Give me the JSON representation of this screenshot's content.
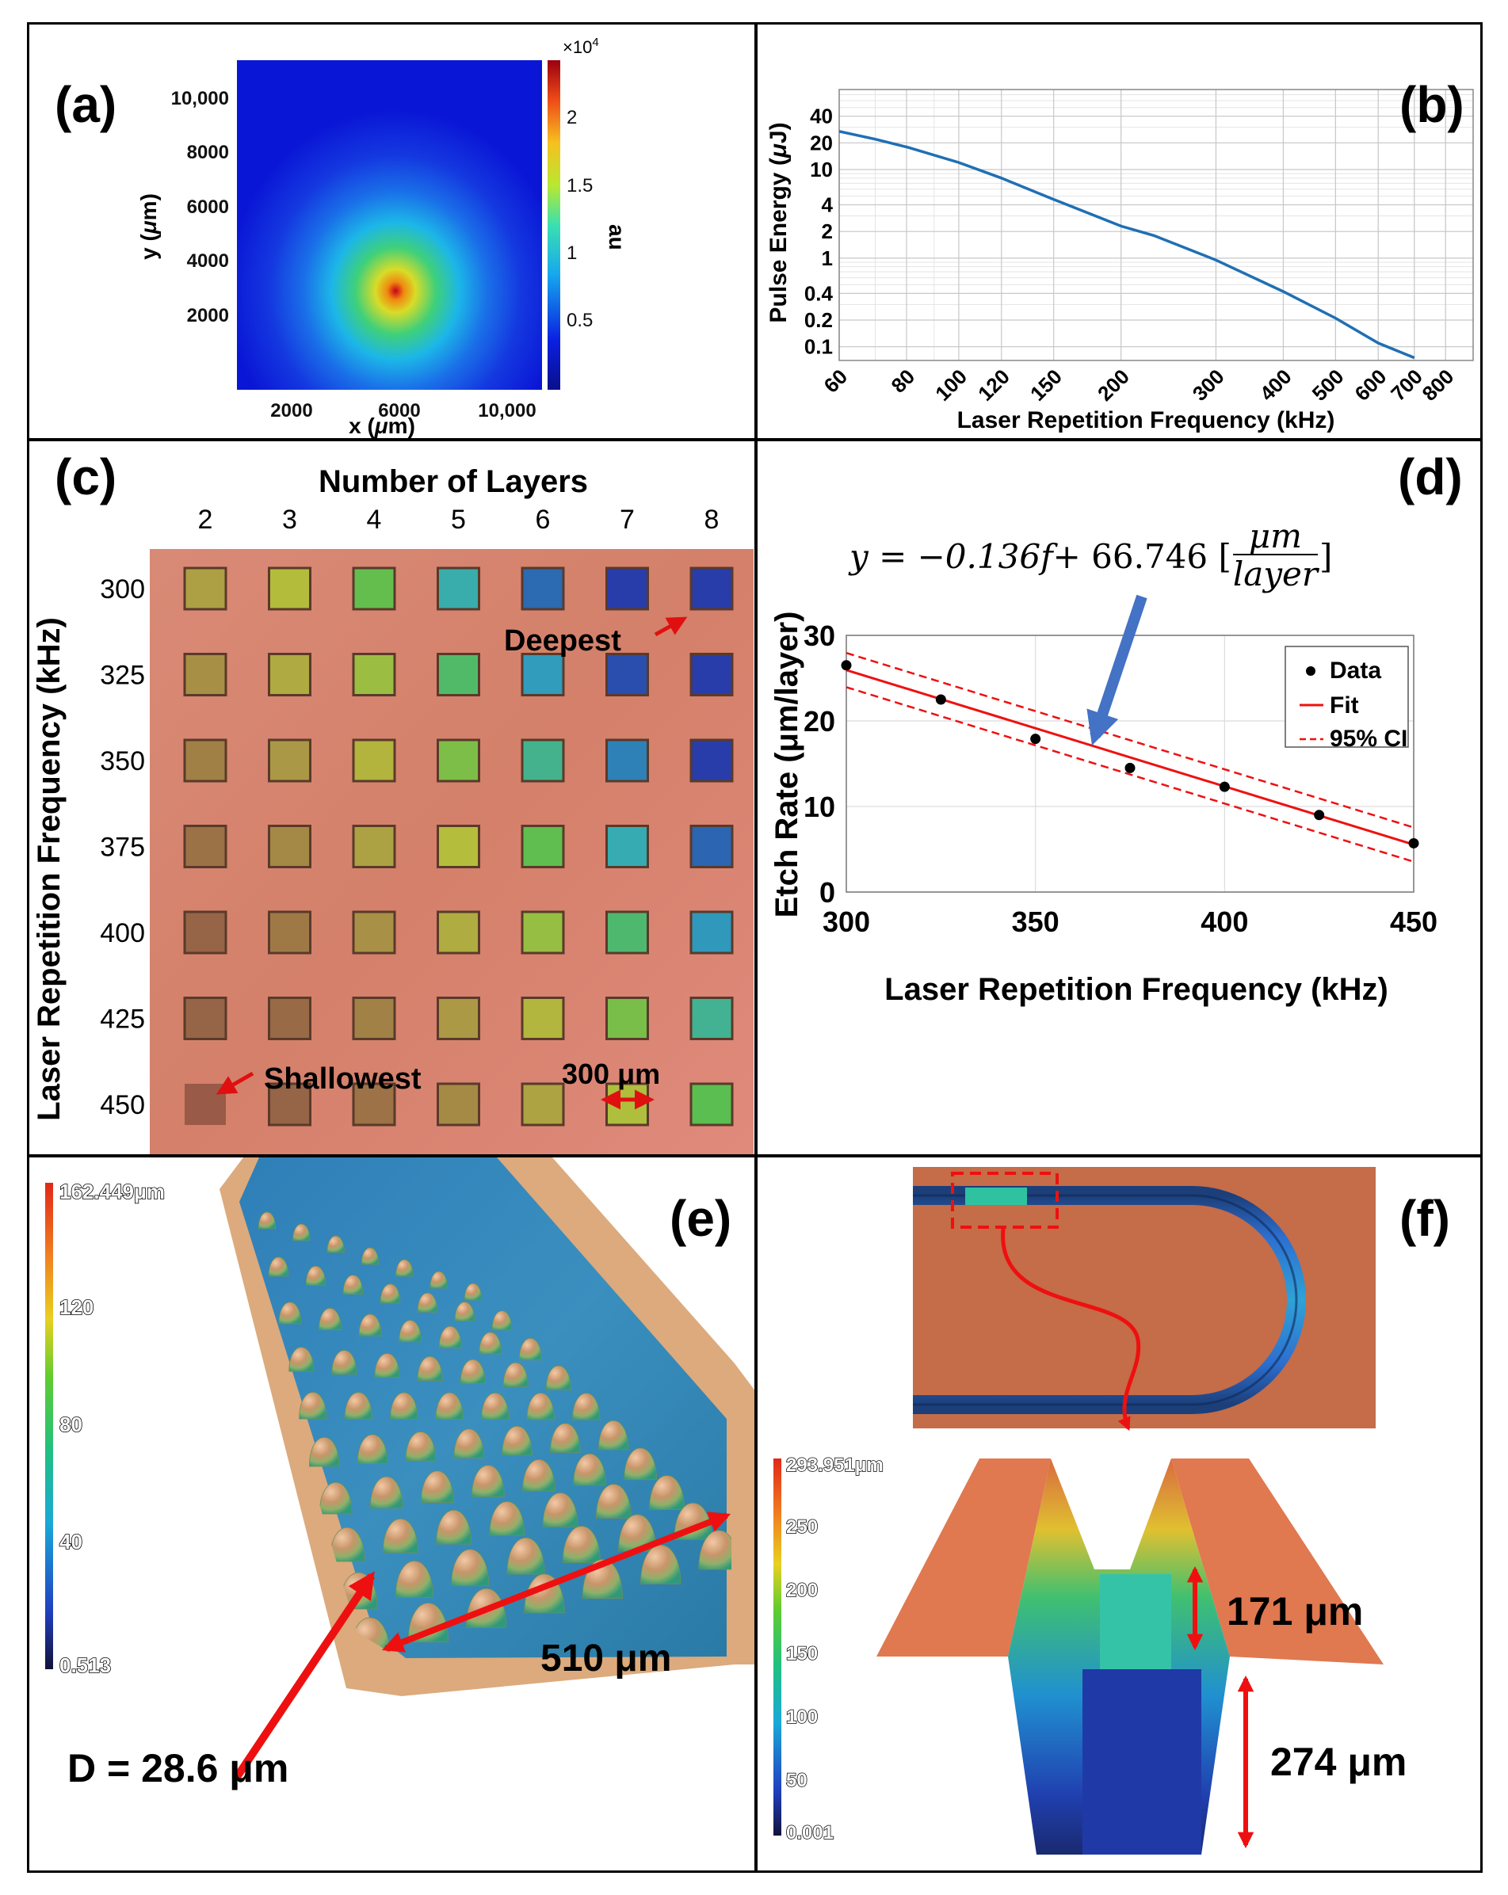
{
  "panels": {
    "a": {
      "label": "(a)",
      "xlabel_pre": "x (",
      "xlabel_mu": "μ",
      "xlabel_post": "m)",
      "ylabel_pre": "y (",
      "ylabel_mu": "μ",
      "ylabel_post": "m)",
      "xticks": [
        "2000",
        "6000",
        "10,000"
      ],
      "yticks": [
        "10,000",
        "8000",
        "6000",
        "4000",
        "2000"
      ],
      "colorbar_label": "au",
      "colorbar_exp_base": "×10",
      "colorbar_exp_power": "4",
      "colorbar_ticks": [
        "2",
        "1.5",
        "1",
        "0.5"
      ]
    },
    "b": {
      "label": "(b)",
      "xlabel": "Laser Repetition Frequency (kHz)",
      "ylabel_pre": "Pulse Energy (",
      "ylabel_mu": "μ",
      "ylabel_post": "J)",
      "colors": {
        "line": "#1f6fb4"
      }
    },
    "c": {
      "label": "(c)",
      "top_title": "Number of Layers",
      "columns": [
        "2",
        "3",
        "4",
        "5",
        "6",
        "7",
        "8"
      ],
      "rows": [
        "300",
        "325",
        "350",
        "375",
        "400",
        "425",
        "450"
      ],
      "ylabel": "Laser Repetition Frequency (kHz)",
      "deepest": "Deepest",
      "shallowest": "Shallowest",
      "scale_text": "300 μm",
      "colors": {
        "substrate": "#d8826e"
      }
    },
    "d": {
      "label": "(d)",
      "equation": {
        "lhs": "y = −0.136",
        "f": "f",
        "rest": " + 66.746 [",
        "num": "μm",
        "den": "layer",
        "close": "]"
      },
      "xlabel": "Laser Repetition Frequency (kHz)",
      "ylabel": "Etch Rate (μm/layer)",
      "legend": [
        "Data",
        "Fit",
        "95% CI"
      ],
      "colors": {
        "fit": "#ee1111",
        "arrow": "#4472c4"
      }
    },
    "e": {
      "label": "(e)",
      "colorbar_ticks": [
        "162.449μm",
        "120",
        "80",
        "40",
        "0.513"
      ],
      "dimension": "510 μm",
      "diameter": "D = 28.6 μm"
    },
    "f": {
      "label": "(f)",
      "colorbar_ticks": [
        "293.951μm",
        "250",
        "200",
        "150",
        "100",
        "50",
        "0.001"
      ],
      "depth_upper": "171 μm",
      "depth_lower": "274 μm"
    }
  },
  "chart_data": [
    {
      "id": "b",
      "type": "line",
      "title": "",
      "xlabel": "Laser Repetition Frequency (kHz)",
      "ylabel": "Pulse Energy (μJ)",
      "xscale": "log",
      "yscale": "log",
      "xlim": [
        60,
        900
      ],
      "ylim": [
        0.07,
        80
      ],
      "xticks": [
        60,
        80,
        100,
        120,
        150,
        200,
        300,
        400,
        500,
        600,
        700,
        800
      ],
      "yticks": [
        0.1,
        0.2,
        0.4,
        1,
        2,
        4,
        10,
        20,
        40
      ],
      "series": [
        {
          "name": "Pulse Energy",
          "x": [
            60,
            70,
            80,
            100,
            120,
            150,
            200,
            230,
            300,
            400,
            500,
            600,
            700
          ],
          "y": [
            27,
            22,
            18,
            12,
            8,
            4.6,
            2.3,
            1.8,
            0.95,
            0.42,
            0.21,
            0.11,
            0.075
          ]
        }
      ]
    },
    {
      "id": "d",
      "type": "scatter",
      "title": "",
      "xlabel": "Laser Repetition Frequency (kHz)",
      "ylabel": "Etch Rate (μm/layer)",
      "xlim": [
        300,
        450
      ],
      "ylim": [
        0,
        30
      ],
      "xticks": [
        300,
        350,
        400,
        450
      ],
      "yticks": [
        0,
        10,
        20,
        30
      ],
      "grid": true,
      "legend_position": "top-right",
      "series": [
        {
          "name": "Data",
          "x": [
            300,
            325,
            350,
            375,
            400,
            425,
            450
          ],
          "y": [
            26.5,
            22.5,
            17.9,
            14.5,
            12.3,
            9.0,
            5.7
          ]
        },
        {
          "name": "Fit",
          "slope": -0.136,
          "intercept": 66.746
        },
        {
          "name": "95% CI",
          "offset": 2.0
        }
      ]
    }
  ]
}
